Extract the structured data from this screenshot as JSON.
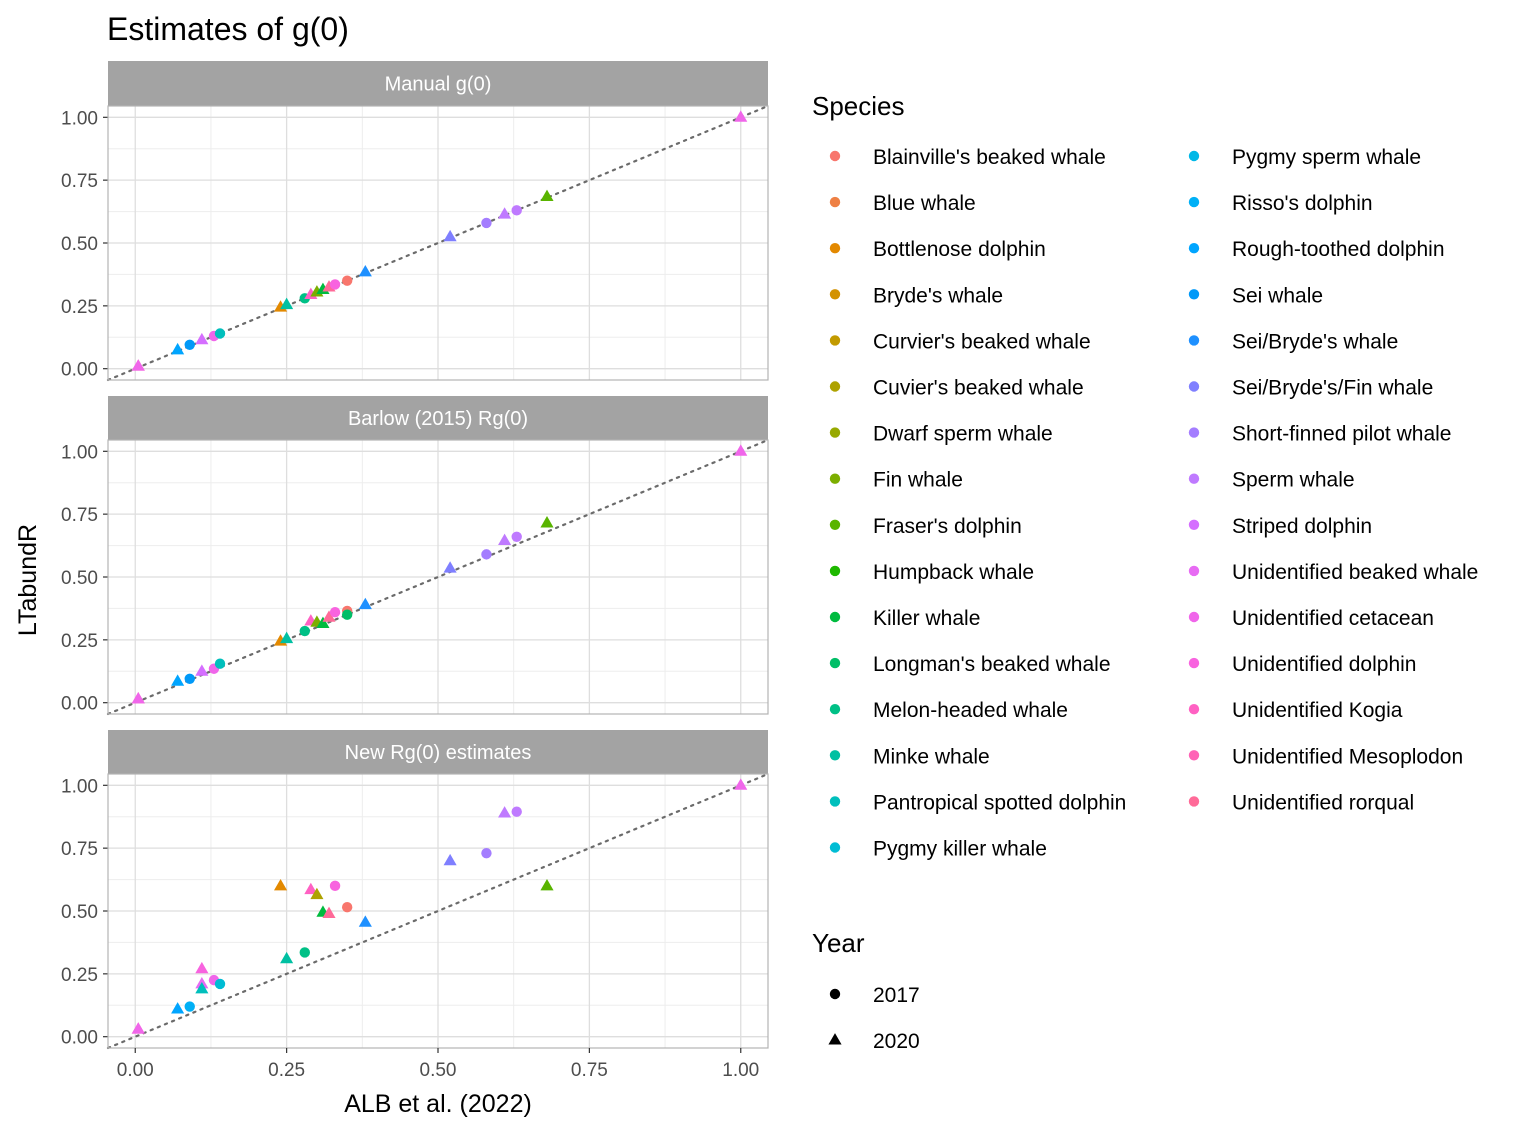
{
  "chart_data": {
    "type": "scatter",
    "title": "Estimates of g(0)",
    "xlabel": "ALB et al. (2022)",
    "ylabel": "LTabundR",
    "xlim": [
      -0.045,
      1.045
    ],
    "ylim": [
      -0.045,
      1.045
    ],
    "x_ticks": [
      "0.00",
      "0.25",
      "0.50",
      "0.75",
      "1.00"
    ],
    "y_ticks": [
      "0.00",
      "0.25",
      "0.50",
      "0.75",
      "1.00"
    ],
    "grid": true,
    "reference_line": "y = x (dotted)",
    "legend_position": "right",
    "species_legend_title": "Species",
    "year_legend_title": "Year",
    "species": [
      {
        "name": "Blainville's beaked whale",
        "color": "#F8766D"
      },
      {
        "name": "Blue whale",
        "color": "#EE8044"
      },
      {
        "name": "Bottlenose dolphin",
        "color": "#E38900"
      },
      {
        "name": "Bryde's whale",
        "color": "#D39200"
      },
      {
        "name": "Curvier's beaked whale",
        "color": "#C29A00"
      },
      {
        "name": "Cuvier's beaked whale",
        "color": "#AEA200"
      },
      {
        "name": "Dwarf sperm whale",
        "color": "#97A900"
      },
      {
        "name": "Fin whale",
        "color": "#7CAE00"
      },
      {
        "name": "Fraser's dolphin",
        "color": "#59B400"
      },
      {
        "name": "Humpback whale",
        "color": "#1EB800"
      },
      {
        "name": "Killer whale",
        "color": "#00BB3F"
      },
      {
        "name": "Longman's beaked whale",
        "color": "#00BE67"
      },
      {
        "name": "Melon-headed whale",
        "color": "#00C086"
      },
      {
        "name": "Minke whale",
        "color": "#00C0A2"
      },
      {
        "name": "Pantropical spotted dolphin",
        "color": "#00BFBC"
      },
      {
        "name": "Pygmy killer whale",
        "color": "#00BCD4"
      },
      {
        "name": "Pygmy sperm whale",
        "color": "#00B8E7"
      },
      {
        "name": "Risso's dolphin",
        "color": "#00B0F6"
      },
      {
        "name": "Rough-toothed dolphin",
        "color": "#00A5FF"
      },
      {
        "name": "Sei whale",
        "color": "#0099F8"
      },
      {
        "name": "Sei/Bryde's whale",
        "color": "#1E90FF"
      },
      {
        "name": "Sei/Bryde's/Fin whale",
        "color": "#7F7FFF"
      },
      {
        "name": "Short-finned pilot whale",
        "color": "#A47DFF"
      },
      {
        "name": "Sperm whale",
        "color": "#BF7AFF"
      },
      {
        "name": "Striped dolphin",
        "color": "#D56EFF"
      },
      {
        "name": "Unidentified beaked whale",
        "color": "#E76BF3"
      },
      {
        "name": "Unidentified cetacean",
        "color": "#F066EA"
      },
      {
        "name": "Unidentified dolphin",
        "color": "#F863DF"
      },
      {
        "name": "Unidentified Kogia",
        "color": "#FF61C3"
      },
      {
        "name": "Unidentified Mesoplodon",
        "color": "#FF63B6"
      },
      {
        "name": "Unidentified rorqual",
        "color": "#FF6A98"
      }
    ],
    "years": [
      {
        "label": "2017",
        "shape": "circle"
      },
      {
        "label": "2020",
        "shape": "triangle"
      }
    ],
    "panels": [
      {
        "title": "Manual g(0)",
        "points": [
          {
            "x": 0.005,
            "y": 0.01,
            "c": "#FF63B6",
            "s": "tri"
          },
          {
            "x": 0.005,
            "y": 0.01,
            "c": "#F066EA",
            "s": "tri"
          },
          {
            "x": 0.07,
            "y": 0.075,
            "c": "#00A5FF",
            "s": "tri"
          },
          {
            "x": 0.09,
            "y": 0.095,
            "c": "#0099F8",
            "s": "cir"
          },
          {
            "x": 0.11,
            "y": 0.115,
            "c": "#D56EFF",
            "s": "tri"
          },
          {
            "x": 0.13,
            "y": 0.13,
            "c": "#F066EA",
            "s": "cir"
          },
          {
            "x": 0.14,
            "y": 0.14,
            "c": "#00BFBC",
            "s": "cir"
          },
          {
            "x": 0.24,
            "y": 0.245,
            "c": "#E38900",
            "s": "tri"
          },
          {
            "x": 0.25,
            "y": 0.255,
            "c": "#00C0A2",
            "s": "tri"
          },
          {
            "x": 0.28,
            "y": 0.28,
            "c": "#00C086",
            "s": "cir"
          },
          {
            "x": 0.29,
            "y": 0.295,
            "c": "#FF61C3",
            "s": "tri"
          },
          {
            "x": 0.3,
            "y": 0.305,
            "c": "#7CAE00",
            "s": "tri"
          },
          {
            "x": 0.31,
            "y": 0.315,
            "c": "#00BB3F",
            "s": "tri"
          },
          {
            "x": 0.32,
            "y": 0.325,
            "c": "#FF6A98",
            "s": "tri"
          },
          {
            "x": 0.33,
            "y": 0.335,
            "c": "#F863DF",
            "s": "cir"
          },
          {
            "x": 0.35,
            "y": 0.35,
            "c": "#F8766D",
            "s": "cir"
          },
          {
            "x": 0.38,
            "y": 0.385,
            "c": "#1E90FF",
            "s": "tri"
          },
          {
            "x": 0.52,
            "y": 0.525,
            "c": "#7F7FFF",
            "s": "tri"
          },
          {
            "x": 0.58,
            "y": 0.58,
            "c": "#A47DFF",
            "s": "cir"
          },
          {
            "x": 0.61,
            "y": 0.615,
            "c": "#BF7AFF",
            "s": "tri"
          },
          {
            "x": 0.63,
            "y": 0.63,
            "c": "#BF7AFF",
            "s": "cir"
          },
          {
            "x": 0.68,
            "y": 0.685,
            "c": "#59B400",
            "s": "tri"
          },
          {
            "x": 1.0,
            "y": 1.0,
            "c": "#F066EA",
            "s": "tri"
          }
        ]
      },
      {
        "title": "Barlow (2015) Rg(0)",
        "points": [
          {
            "x": 0.005,
            "y": 0.015,
            "c": "#FF63B6",
            "s": "tri"
          },
          {
            "x": 0.005,
            "y": 0.015,
            "c": "#F066EA",
            "s": "tri"
          },
          {
            "x": 0.07,
            "y": 0.085,
            "c": "#00A5FF",
            "s": "tri"
          },
          {
            "x": 0.09,
            "y": 0.095,
            "c": "#0099F8",
            "s": "cir"
          },
          {
            "x": 0.11,
            "y": 0.125,
            "c": "#D56EFF",
            "s": "tri"
          },
          {
            "x": 0.13,
            "y": 0.135,
            "c": "#F066EA",
            "s": "cir"
          },
          {
            "x": 0.14,
            "y": 0.155,
            "c": "#00BFBC",
            "s": "cir"
          },
          {
            "x": 0.24,
            "y": 0.245,
            "c": "#E38900",
            "s": "tri"
          },
          {
            "x": 0.25,
            "y": 0.255,
            "c": "#00C0A2",
            "s": "tri"
          },
          {
            "x": 0.28,
            "y": 0.285,
            "c": "#00C086",
            "s": "cir"
          },
          {
            "x": 0.29,
            "y": 0.325,
            "c": "#FF61C3",
            "s": "tri"
          },
          {
            "x": 0.3,
            "y": 0.32,
            "c": "#7CAE00",
            "s": "tri"
          },
          {
            "x": 0.31,
            "y": 0.315,
            "c": "#00BB3F",
            "s": "tri"
          },
          {
            "x": 0.32,
            "y": 0.34,
            "c": "#FF6A98",
            "s": "tri"
          },
          {
            "x": 0.33,
            "y": 0.36,
            "c": "#F863DF",
            "s": "cir"
          },
          {
            "x": 0.35,
            "y": 0.365,
            "c": "#F8766D",
            "s": "cir"
          },
          {
            "x": 0.35,
            "y": 0.35,
            "c": "#00BE67",
            "s": "cir"
          },
          {
            "x": 0.38,
            "y": 0.39,
            "c": "#1E90FF",
            "s": "tri"
          },
          {
            "x": 0.52,
            "y": 0.535,
            "c": "#7F7FFF",
            "s": "tri"
          },
          {
            "x": 0.58,
            "y": 0.59,
            "c": "#A47DFF",
            "s": "cir"
          },
          {
            "x": 0.61,
            "y": 0.645,
            "c": "#BF7AFF",
            "s": "tri"
          },
          {
            "x": 0.63,
            "y": 0.66,
            "c": "#BF7AFF",
            "s": "cir"
          },
          {
            "x": 0.68,
            "y": 0.715,
            "c": "#59B400",
            "s": "tri"
          },
          {
            "x": 1.0,
            "y": 1.0,
            "c": "#F066EA",
            "s": "tri"
          }
        ]
      },
      {
        "title": "New Rg(0) estimates",
        "points": [
          {
            "x": 0.005,
            "y": 0.03,
            "c": "#FF63B6",
            "s": "tri"
          },
          {
            "x": 0.005,
            "y": 0.03,
            "c": "#F066EA",
            "s": "tri"
          },
          {
            "x": 0.07,
            "y": 0.11,
            "c": "#00A5FF",
            "s": "tri"
          },
          {
            "x": 0.09,
            "y": 0.12,
            "c": "#00B0F6",
            "s": "cir"
          },
          {
            "x": 0.11,
            "y": 0.27,
            "c": "#F863DF",
            "s": "tri"
          },
          {
            "x": 0.11,
            "y": 0.21,
            "c": "#E76BF3",
            "s": "tri"
          },
          {
            "x": 0.11,
            "y": 0.19,
            "c": "#00BFBC",
            "s": "tri"
          },
          {
            "x": 0.13,
            "y": 0.225,
            "c": "#F066EA",
            "s": "cir"
          },
          {
            "x": 0.14,
            "y": 0.21,
            "c": "#00BCD4",
            "s": "cir"
          },
          {
            "x": 0.24,
            "y": 0.6,
            "c": "#E38900",
            "s": "tri"
          },
          {
            "x": 0.25,
            "y": 0.31,
            "c": "#00C0A2",
            "s": "tri"
          },
          {
            "x": 0.28,
            "y": 0.335,
            "c": "#00C086",
            "s": "cir"
          },
          {
            "x": 0.29,
            "y": 0.585,
            "c": "#FF61C3",
            "s": "tri"
          },
          {
            "x": 0.3,
            "y": 0.565,
            "c": "#AEA200",
            "s": "tri"
          },
          {
            "x": 0.31,
            "y": 0.495,
            "c": "#00BB3F",
            "s": "tri"
          },
          {
            "x": 0.32,
            "y": 0.49,
            "c": "#FF6A98",
            "s": "tri"
          },
          {
            "x": 0.33,
            "y": 0.6,
            "c": "#F863DF",
            "s": "cir"
          },
          {
            "x": 0.35,
            "y": 0.515,
            "c": "#F8766D",
            "s": "cir"
          },
          {
            "x": 0.38,
            "y": 0.455,
            "c": "#1E90FF",
            "s": "tri"
          },
          {
            "x": 0.52,
            "y": 0.7,
            "c": "#7F7FFF",
            "s": "tri"
          },
          {
            "x": 0.58,
            "y": 0.73,
            "c": "#A47DFF",
            "s": "cir"
          },
          {
            "x": 0.61,
            "y": 0.89,
            "c": "#BF7AFF",
            "s": "tri"
          },
          {
            "x": 0.63,
            "y": 0.895,
            "c": "#BF7AFF",
            "s": "cir"
          },
          {
            "x": 0.68,
            "y": 0.6,
            "c": "#59B400",
            "s": "tri"
          },
          {
            "x": 1.0,
            "y": 1.0,
            "c": "#F066EA",
            "s": "tri"
          }
        ]
      }
    ]
  }
}
